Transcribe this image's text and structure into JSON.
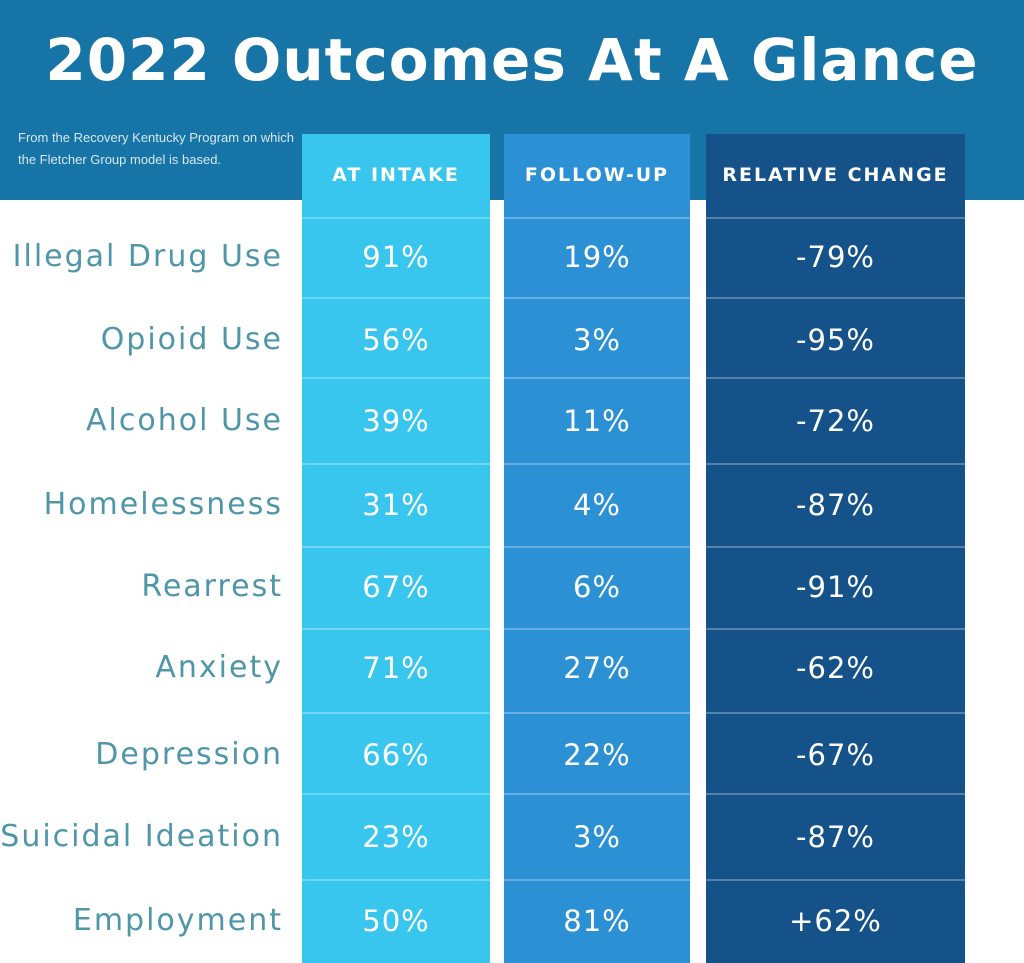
{
  "title": "2022 Outcomes At A Glance",
  "subtitle": "From the Recovery Kentucky Program on which the Fletcher Group model is based.",
  "colors": {
    "header_band": "#1774a6",
    "at_intake": "#38c6ef",
    "follow_up": "#2c90d5",
    "relative_change": "#15528a",
    "row_label": "#4f96a9"
  },
  "chart_data": {
    "type": "table",
    "columns": [
      "AT INTAKE",
      "FOLLOW-UP",
      "RELATIVE CHANGE"
    ],
    "rows": [
      {
        "label": "Illegal Drug Use",
        "values": [
          "91%",
          "19%",
          "-79%"
        ]
      },
      {
        "label": "Opioid Use",
        "values": [
          "56%",
          "3%",
          "-95%"
        ]
      },
      {
        "label": "Alcohol Use",
        "values": [
          "39%",
          "11%",
          "-72%"
        ]
      },
      {
        "label": "Homelessness",
        "values": [
          "31%",
          "4%",
          "-87%"
        ]
      },
      {
        "label": "Rearrest",
        "values": [
          "67%",
          "6%",
          "-91%"
        ]
      },
      {
        "label": "Anxiety",
        "values": [
          "71%",
          "27%",
          "-62%"
        ]
      },
      {
        "label": "Depression",
        "values": [
          "66%",
          "22%",
          "-67%"
        ]
      },
      {
        "label": "Suicidal Ideation",
        "values": [
          "23%",
          "3%",
          "-87%"
        ]
      },
      {
        "label": "Employment",
        "values": [
          "50%",
          "81%",
          "+62%"
        ]
      }
    ]
  }
}
